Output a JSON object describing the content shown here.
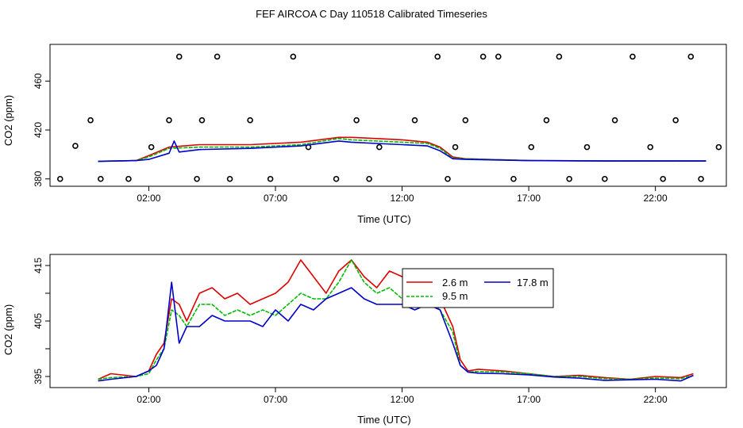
{
  "title": "FEF AIRCOA C  Day 110518  Calibrated Timeseries",
  "colors": {
    "s1": "#dd0000",
    "s2": "#00bb00",
    "s3": "#0000cc",
    "points": "#000000"
  },
  "chart_data": [
    {
      "type": "line",
      "xlabel": "Time (UTC)",
      "ylabel": "CO2 (ppm)",
      "xlim": [
        -1.9,
        24.8
      ],
      "ylim": [
        374,
        490
      ],
      "xticks": [
        2,
        7,
        12,
        17,
        22
      ],
      "xtick_labels": [
        "02:00",
        "07:00",
        "12:00",
        "17:00",
        "22:00"
      ],
      "yticks": [
        380,
        420,
        460
      ],
      "ytick_labels": [
        "380",
        "420",
        "460"
      ],
      "series": [
        {
          "x": [
            0,
            1.5,
            2,
            2.8,
            4,
            6,
            8,
            9.5,
            10,
            11,
            12,
            13,
            13.5,
            14,
            14.5,
            17,
            20,
            24
          ],
          "y": [
            394.5,
            395,
            399,
            406,
            408,
            408,
            410,
            414,
            414,
            413,
            412,
            410,
            406,
            398,
            396.5,
            395,
            394.8,
            394.8
          ]
        },
        {
          "x": [
            0,
            1.5,
            2,
            2.8,
            4,
            6,
            8,
            9.5,
            10,
            11,
            12,
            13,
            13.5,
            14,
            14.5,
            17,
            20,
            24
          ],
          "y": [
            394.5,
            395,
            398,
            405,
            406,
            406,
            408,
            413,
            412,
            411,
            410,
            409,
            405,
            397,
            396.5,
            395,
            394.8,
            394.8
          ]
        },
        {
          "x": [
            0,
            1.5,
            2,
            2.8,
            3.0,
            3.2,
            4,
            6,
            8,
            9.5,
            10,
            11,
            12,
            13,
            13.5,
            14,
            14.5,
            17,
            20,
            24
          ],
          "y": [
            394.3,
            395,
            396,
            401,
            411,
            402,
            404,
            405,
            407,
            411,
            410,
            409,
            408,
            407,
            403,
            396.5,
            396,
            395,
            394.6,
            394.6
          ]
        }
      ],
      "points": {
        "x": [
          -1.5,
          -0.9,
          -0.3,
          0.1,
          1.2,
          2.1,
          2.8,
          3.2,
          3.9,
          4.1,
          4.7,
          5.2,
          6,
          6.8,
          7.7,
          8.3,
          9.4,
          10.2,
          10.7,
          11.1,
          12.5,
          13.4,
          13.8,
          14.1,
          14.5,
          15.2,
          15.8,
          16.4,
          17.1,
          17.7,
          18.2,
          18.6,
          19.3,
          20,
          20.4,
          21.1,
          21.8,
          22.3,
          22.8,
          23.4,
          23.8,
          24.5
        ],
        "y": [
          380,
          407,
          428,
          380,
          380,
          406,
          428,
          480,
          380,
          428,
          480,
          380,
          428,
          380,
          480,
          406,
          380,
          428,
          380,
          406,
          428,
          480,
          380,
          406,
          428,
          480,
          480,
          380,
          406,
          428,
          480,
          380,
          406,
          380,
          428,
          480,
          406,
          380,
          428,
          480,
          380,
          406
        ]
      }
    },
    {
      "type": "line",
      "xlabel": "Time (UTC)",
      "ylabel": "CO2 (ppm)",
      "xlim": [
        -1.9,
        24.8
      ],
      "ylim": [
        393,
        417
      ],
      "xticks": [
        2,
        7,
        12,
        17,
        22
      ],
      "xtick_labels": [
        "02:00",
        "07:00",
        "12:00",
        "17:00",
        "22:00"
      ],
      "yticks": [
        395,
        400,
        405,
        410,
        415
      ],
      "ytick_labels": [
        "395",
        "",
        "405",
        "",
        "415"
      ],
      "legend": {
        "position": "top-right",
        "entries": [
          "2.6 m",
          "9.5 m",
          "17.8 m"
        ]
      },
      "series": [
        {
          "name": "2.6 m",
          "x": [
            0,
            0.5,
            1.5,
            2,
            2.3,
            2.6,
            2.9,
            3.2,
            3.5,
            4,
            4.5,
            5,
            5.5,
            6,
            6.5,
            7,
            7.5,
            8,
            8.5,
            9,
            9.5,
            10,
            10.5,
            11,
            11.5,
            12,
            12.5,
            13,
            13.5,
            14,
            14.3,
            14.6,
            15,
            16,
            17,
            18,
            19,
            20,
            21,
            22,
            23,
            23.5
          ],
          "y": [
            394.5,
            395.5,
            395,
            396,
            399,
            401,
            409,
            408,
            405,
            410,
            411,
            409,
            410,
            408,
            409,
            410,
            412,
            416,
            413,
            410,
            414,
            416,
            413,
            411,
            414,
            413,
            412,
            414,
            409,
            404,
            398,
            396,
            396.3,
            396,
            395.5,
            395,
            395.2,
            394.8,
            394.5,
            395,
            394.8,
            395.5
          ]
        },
        {
          "name": "9.5 m",
          "x": [
            0,
            0.5,
            1.5,
            2,
            2.3,
            2.6,
            2.9,
            3.2,
            3.5,
            4,
            4.5,
            5,
            5.5,
            6,
            6.5,
            7,
            7.5,
            8,
            8.5,
            9,
            9.5,
            10,
            10.5,
            11,
            11.5,
            12,
            12.5,
            13,
            13.5,
            14,
            14.3,
            14.6,
            15,
            16,
            17,
            18,
            19,
            20,
            21,
            22,
            23,
            23.5
          ],
          "y": [
            394.5,
            394.8,
            395,
            395.5,
            398,
            400,
            407,
            406,
            404,
            408,
            408,
            406,
            407,
            406,
            407,
            406,
            408,
            410,
            409,
            409,
            412,
            416,
            412,
            410,
            411,
            409,
            409,
            410,
            407,
            403,
            397,
            395.8,
            395.9,
            395.8,
            395.5,
            395,
            395,
            394.6,
            394.5,
            394.7,
            394.6,
            395.2
          ]
        },
        {
          "name": "17.8 m",
          "x": [
            0,
            0.5,
            1.5,
            2,
            2.3,
            2.6,
            2.9,
            3.2,
            3.5,
            4,
            4.5,
            5,
            5.5,
            6,
            6.5,
            7,
            7.5,
            8,
            8.5,
            9,
            9.5,
            10,
            10.5,
            11,
            11.5,
            12,
            12.5,
            13,
            13.5,
            14,
            14.3,
            14.6,
            15,
            16,
            17,
            18,
            19,
            20,
            21,
            22,
            23,
            23.5
          ],
          "y": [
            394.2,
            394.5,
            395,
            396,
            397,
            400,
            412,
            401,
            404,
            404,
            406,
            405,
            405,
            405,
            404,
            407,
            405,
            408,
            407,
            409,
            410,
            411,
            409,
            408,
            408,
            408,
            407,
            408,
            407,
            401,
            397,
            395.8,
            395.6,
            395.5,
            395.3,
            394.9,
            394.7,
            394.3,
            394.4,
            394.5,
            394.2,
            395.2
          ]
        }
      ]
    }
  ]
}
